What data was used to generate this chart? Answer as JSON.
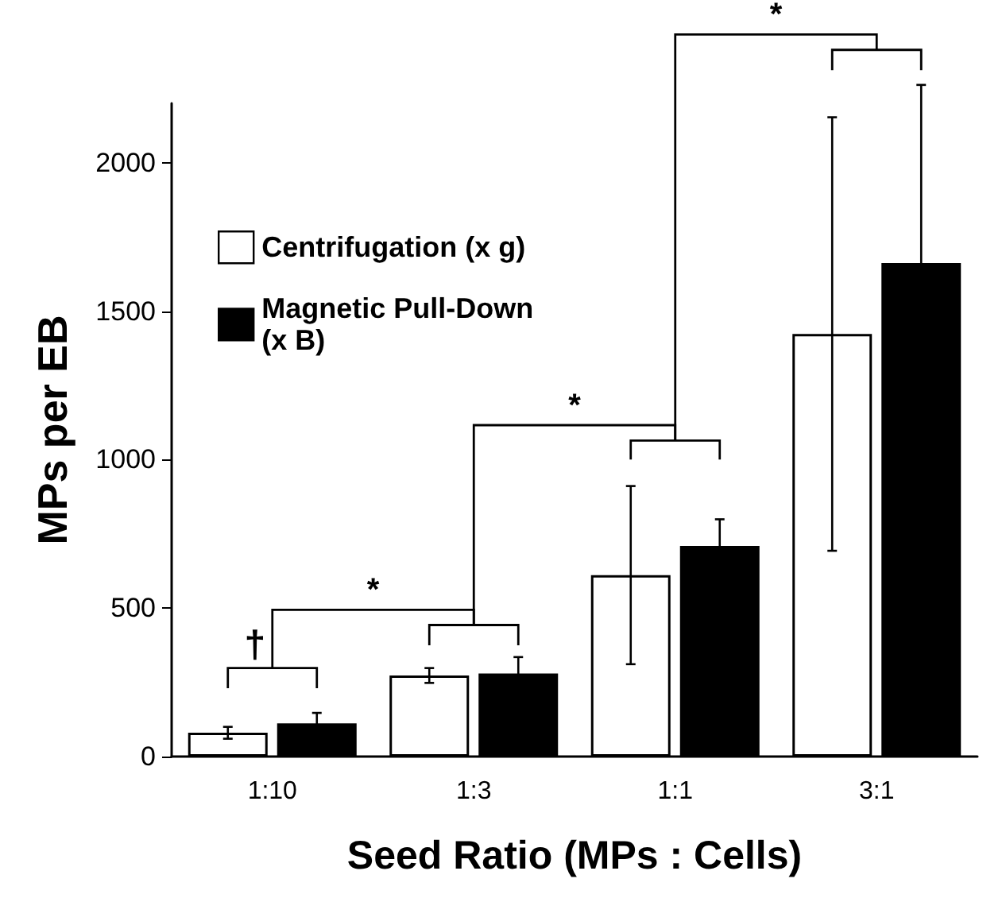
{
  "chart_data": {
    "type": "bar",
    "xlabel": "Seed Ratio (MPs : Cells)",
    "ylabel": "MPs per EB",
    "categories": [
      "1:10",
      "1:3",
      "1:1",
      "3:1"
    ],
    "series": [
      {
        "name": "Centrifugation (x g)",
        "color": "#ffffff",
        "values": [
          80,
          273,
          611,
          1423
        ],
        "errors": [
          20,
          25,
          300,
          730
        ]
      },
      {
        "name": "Magnetic Pull-Down\n(x B)",
        "color": "#000000",
        "values": [
          112,
          280,
          709,
          1662
        ],
        "errors": [
          35,
          55,
          90,
          600
        ]
      }
    ],
    "ylim": [
      0,
      2200
    ],
    "yticks": [
      0,
      500,
      1000,
      1500,
      2000
    ],
    "grid": false,
    "legend": "top left",
    "annotations": [
      "†",
      "*",
      "*",
      "*"
    ]
  }
}
